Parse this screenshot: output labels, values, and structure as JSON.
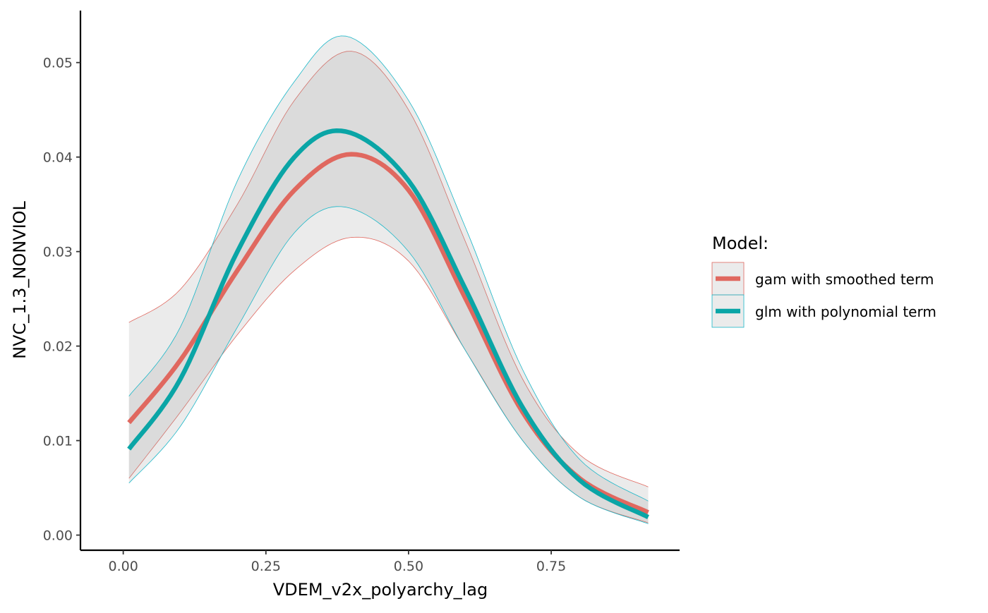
{
  "chart_data": {
    "type": "line",
    "xlabel": "VDEM_v2x_polyarchy_lag",
    "ylabel": "NVC_1.3_NONVIOL",
    "xlim": [
      -0.075,
      0.975
    ],
    "ylim": [
      -0.0016,
      0.0555
    ],
    "xticks": [
      0.0,
      0.25,
      0.5,
      0.75
    ],
    "xtick_labels": [
      "0.00",
      "0.25",
      "0.50",
      "0.75"
    ],
    "yticks": [
      0.0,
      0.01,
      0.02,
      0.03,
      0.04,
      0.05
    ],
    "ytick_labels": [
      "0.00",
      "0.01",
      "0.02",
      "0.03",
      "0.04",
      "0.05"
    ],
    "grid": false,
    "legend": {
      "title": "Model:",
      "position": "right"
    },
    "series": [
      {
        "name": "gam with smoothed term",
        "color": "#e0685f",
        "ribbon_color": "#e0685f",
        "x": [
          0.01,
          0.1,
          0.2,
          0.3,
          0.4,
          0.5,
          0.6,
          0.7,
          0.8,
          0.92
        ],
        "y": [
          0.0119,
          0.0185,
          0.028,
          0.0365,
          0.0403,
          0.0365,
          0.025,
          0.013,
          0.006,
          0.0024
        ],
        "lower": [
          0.006,
          0.013,
          0.0212,
          0.028,
          0.0315,
          0.029,
          0.0195,
          0.01,
          0.004,
          0.0013
        ],
        "upper": [
          0.0225,
          0.026,
          0.035,
          0.046,
          0.0512,
          0.045,
          0.031,
          0.0165,
          0.0085,
          0.0051
        ]
      },
      {
        "name": "glm with polynomial term",
        "color": "#0aa5a6",
        "ribbon_color": "#19b7c8",
        "x": [
          0.01,
          0.1,
          0.2,
          0.3,
          0.39,
          0.5,
          0.6,
          0.7,
          0.8,
          0.92
        ],
        "y": [
          0.0091,
          0.0165,
          0.03,
          0.04,
          0.0427,
          0.0375,
          0.026,
          0.0135,
          0.0058,
          0.0019
        ],
        "lower": [
          0.0055,
          0.0115,
          0.022,
          0.032,
          0.0347,
          0.03,
          0.0195,
          0.01,
          0.004,
          0.0012
        ],
        "upper": [
          0.0147,
          0.022,
          0.0375,
          0.048,
          0.0528,
          0.046,
          0.0325,
          0.0175,
          0.008,
          0.0036
        ]
      }
    ]
  }
}
